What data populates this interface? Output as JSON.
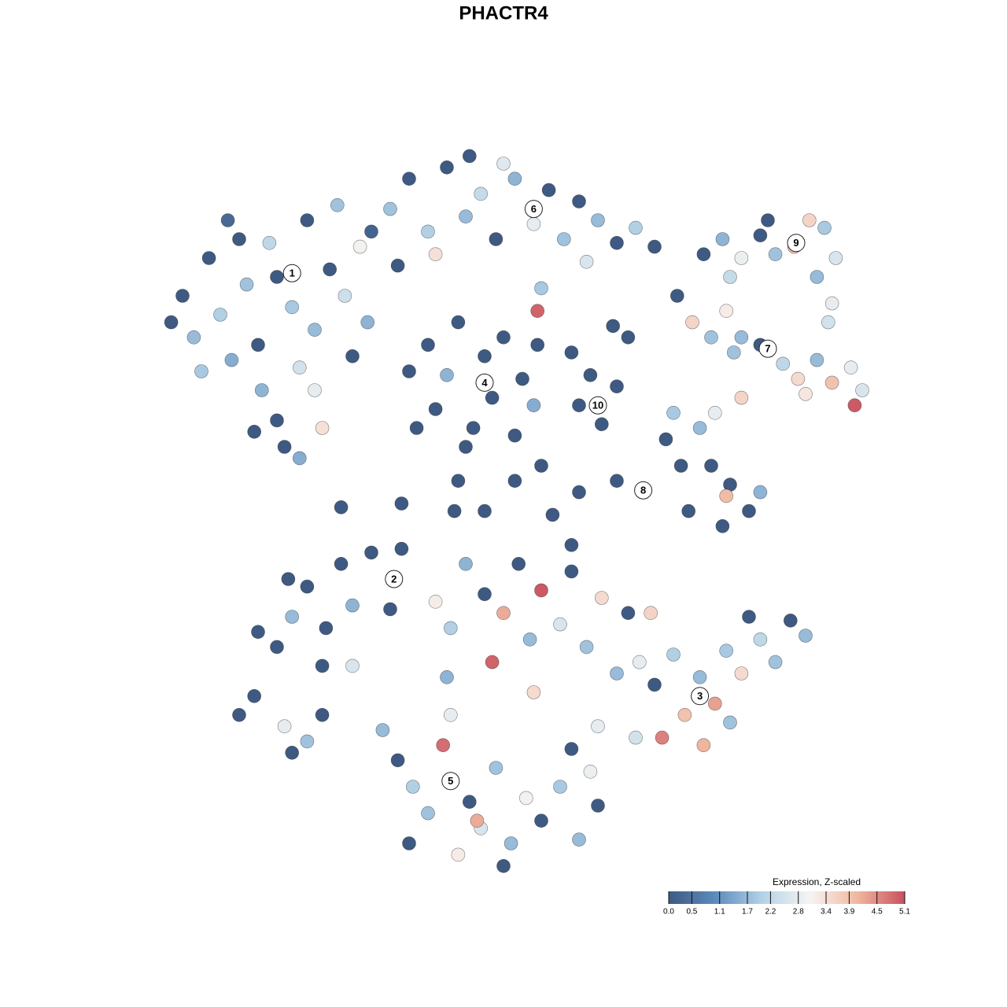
{
  "chart_data": {
    "type": "scatter",
    "title": "PHACTR4",
    "xlim": [
      -10,
      10
    ],
    "ylim": [
      -10,
      10
    ],
    "x": [
      -8.8,
      -8.5,
      -8.2,
      -7.8,
      -7.5,
      -7.2,
      -7.0,
      -6.8,
      -6.5,
      -6.4,
      -6.2,
      -6.0,
      -5.8,
      -5.6,
      -5.4,
      -5.2,
      -5.0,
      -4.8,
      -4.6,
      -4.4,
      -4.2,
      -4.0,
      -3.8,
      -3.6,
      -6.6,
      -5.4,
      -7.3,
      -8.0,
      -6.0,
      -5.0,
      -3.0,
      -2.5,
      -2.0,
      -1.5,
      -1.0,
      -0.6,
      -0.2,
      0.3,
      0.8,
      1.2,
      1.6,
      2.0,
      2.5,
      3.0,
      3.5,
      4.0,
      -1.8,
      1.0,
      0.9,
      -2.8,
      -3.5,
      2.2,
      -0.9,
      0.0,
      5.3,
      5.8,
      6.3,
      6.8,
      7.2,
      7.7,
      8.1,
      8.5,
      8.8,
      8.3,
      7.0,
      6.0,
      8.7,
      8.6,
      4.6,
      5.0,
      5.5,
      5.9,
      6.3,
      6.8,
      7.4,
      7.8,
      8.3,
      8.7,
      9.2,
      9.5,
      9.3,
      8.0,
      6.3,
      5.6,
      4.5,
      6.1,
      -2.5,
      -2.0,
      -1.8,
      -1.5,
      -1.2,
      -0.8,
      -0.5,
      -0.3,
      0.0,
      0.3,
      0.5,
      0.8,
      -1.0,
      -2.3,
      0.9,
      1.8,
      2.3,
      2.6,
      3.0,
      3.3,
      2.0,
      2.9,
      4.3,
      4.7,
      5.2,
      5.5,
      6.0,
      6.5,
      6.8,
      5.8,
      4.9,
      5.9,
      3.0,
      2.0,
      1.3,
      1.8,
      0.3,
      -0.5,
      -1.3,
      -4.3,
      -2.7,
      1.0,
      -1.2,
      -6.5,
      -6.0,
      -5.6,
      -5.2,
      -4.7,
      -4.3,
      -4.0,
      -3.5,
      -3.0,
      -2.7,
      -4.8,
      -4.0,
      -5.7,
      -7.0,
      -6.6,
      -5.8,
      -5.2,
      -5.6,
      -4.8,
      -1.0,
      -0.5,
      0.0,
      0.4,
      0.7,
      1.0,
      1.5,
      1.8,
      2.2,
      2.6,
      3.0,
      3.3,
      3.6,
      -1.4,
      -1.8,
      -0.3,
      0.8,
      -1.5,
      4.0,
      4.5,
      4.8,
      5.2,
      5.6,
      5.9,
      6.3,
      6.8,
      7.2,
      7.6,
      8.0,
      3.5,
      4.2,
      5.3,
      6.0,
      3.9,
      2.5,
      6.5,
      -3.2,
      -2.8,
      -2.4,
      -2.0,
      -1.6,
      -1.2,
      -0.9,
      -0.6,
      -0.2,
      0.2,
      0.6,
      1.0,
      1.5,
      2.0,
      2.5,
      -1.4,
      0.0,
      -2.5,
      2.3,
      -0.7,
      1.8
    ],
    "y": [
      4.8,
      5.5,
      4.4,
      6.5,
      5.0,
      3.8,
      7.0,
      5.8,
      4.2,
      3.0,
      6.9,
      2.2,
      1.5,
      5.2,
      3.6,
      7.5,
      4.6,
      2.0,
      6.2,
      7.9,
      5.5,
      3.9,
      6.8,
      4.8,
      1.9,
      1.2,
      7.5,
      3.5,
      6.0,
      3.0,
      7.8,
      8.6,
      7.2,
      8.9,
      7.6,
      8.2,
      7.0,
      8.6,
      7.4,
      8.3,
      7.0,
      8.0,
      7.5,
      6.9,
      7.3,
      6.8,
      6.6,
      5.7,
      5.1,
      6.3,
      7.2,
      6.4,
      9.2,
      9.0,
      6.6,
      7.0,
      6.5,
      7.1,
      6.6,
      6.8,
      7.5,
      7.3,
      6.5,
      6.0,
      7.5,
      6.0,
      5.3,
      4.8,
      5.5,
      4.8,
      4.4,
      5.1,
      4.4,
      4.2,
      3.7,
      3.3,
      3.8,
      3.2,
      3.6,
      3.0,
      2.6,
      2.9,
      2.8,
      2.4,
      2.4,
      4.0,
      3.5,
      4.2,
      2.5,
      3.4,
      4.8,
      2.0,
      3.9,
      2.8,
      4.4,
      1.8,
      3.3,
      2.6,
      1.5,
      2.0,
      4.2,
      4.0,
      3.4,
      2.1,
      3.1,
      4.4,
      2.6,
      4.7,
      1.7,
      1.0,
      2.0,
      1.0,
      0.5,
      -0.2,
      0.3,
      -0.6,
      -0.2,
      0.2,
      0.6,
      0.3,
      -0.3,
      -1.1,
      0.6,
      -0.2,
      -0.2,
      -0.1,
      0.0,
      1.0,
      0.6,
      -3.4,
      -3.8,
      -3.0,
      -2.2,
      -3.3,
      -1.6,
      -2.7,
      -1.3,
      -2.8,
      -1.2,
      -4.3,
      -4.3,
      -2.0,
      -5.6,
      -5.1,
      -5.9,
      -6.3,
      -6.6,
      -5.6,
      -1.6,
      -2.4,
      -2.9,
      -1.6,
      -3.6,
      -2.3,
      -3.2,
      -1.8,
      -3.8,
      -2.5,
      -4.5,
      -2.9,
      -4.2,
      -3.3,
      -2.6,
      -4.2,
      -5.0,
      -4.6,
      -4.8,
      -4.0,
      -5.6,
      -4.6,
      -5.3,
      -3.9,
      -4.5,
      -3.6,
      -4.2,
      -3.1,
      -3.5,
      -6.2,
      -6.2,
      -6.4,
      -5.8,
      -2.9,
      -5.9,
      -3.0,
      -6.0,
      -6.8,
      -7.5,
      -8.2,
      -6.4,
      -9.3,
      -7.9,
      -8.6,
      -7.0,
      -9.0,
      -7.8,
      -8.4,
      -7.5,
      -8.9,
      -8.0,
      -5.6,
      -9.6,
      -9.0,
      -7.1,
      -8.4,
      -6.5
    ],
    "values": [
      0,
      0,
      1.7,
      0,
      2.0,
      1.5,
      0,
      1.8,
      0,
      1.6,
      2.2,
      0,
      0,
      1.9,
      2.5,
      0,
      1.7,
      3.4,
      0,
      1.8,
      2.4,
      0,
      3.0,
      1.6,
      0,
      1.5,
      0.3,
      1.9,
      0,
      2.8,
      1.8,
      0,
      2.0,
      0,
      1.7,
      2.3,
      0,
      1.6,
      2.8,
      0,
      1.8,
      0,
      1.7,
      0,
      2.0,
      0,
      3.4,
      1.9,
      4.9,
      0,
      0.2,
      2.6,
      0,
      2.7,
      0,
      1.6,
      2.9,
      0,
      1.8,
      4.0,
      3.6,
      1.9,
      2.6,
      1.7,
      0,
      2.3,
      2.8,
      2.5,
      0,
      3.6,
      1.8,
      3.2,
      1.7,
      0,
      2.2,
      3.5,
      1.7,
      3.9,
      2.8,
      2.6,
      5.0,
      3.3,
      3.6,
      2.8,
      1.9,
      1.8,
      0,
      0,
      0,
      1.6,
      0,
      0,
      0,
      0,
      0,
      0,
      0,
      1.5,
      0,
      0,
      0,
      0,
      0,
      0,
      0,
      0,
      0,
      0,
      0,
      0,
      1.7,
      0,
      0,
      0,
      1.6,
      0,
      0,
      4.0,
      0,
      0,
      0,
      0,
      0,
      0,
      0,
      0,
      0,
      0,
      0,
      0,
      0,
      1.7,
      0,
      0,
      0,
      1.6,
      0,
      0,
      0,
      0,
      2.6,
      0,
      0,
      0,
      2.8,
      1.8,
      0,
      0,
      1.6,
      0,
      4.2,
      0,
      1.7,
      5.0,
      2.6,
      0,
      1.8,
      3.5,
      1.7,
      0,
      2.8,
      2.0,
      3.2,
      4.9,
      3.5,
      1.6,
      0,
      2.0,
      3.9,
      1.7,
      4.3,
      1.9,
      3.5,
      2.2,
      1.8,
      0,
      1.7,
      2.5,
      4.6,
      4.1,
      1.8,
      3.6,
      2.8,
      0,
      1.7,
      0,
      2.0,
      1.8,
      4.8,
      3.2,
      0,
      2.6,
      1.8,
      1.7,
      3.0,
      0,
      1.9,
      1.7,
      0,
      2.8,
      0,
      0,
      2.9,
      4.2,
      0
    ],
    "clusters": [
      {
        "label": "1",
        "x": -5.6,
        "y": 6.1
      },
      {
        "label": "2",
        "x": -2.9,
        "y": -2.0
      },
      {
        "label": "3",
        "x": 5.2,
        "y": -5.1
      },
      {
        "label": "4",
        "x": -0.5,
        "y": 3.2
      },
      {
        "label": "5",
        "x": -1.4,
        "y": -7.35
      },
      {
        "label": "6",
        "x": 0.8,
        "y": 7.8
      },
      {
        "label": "7",
        "x": 7.0,
        "y": 4.1
      },
      {
        "label": "8",
        "x": 3.7,
        "y": 0.35
      },
      {
        "label": "9",
        "x": 7.75,
        "y": 6.9
      },
      {
        "label": "10",
        "x": 2.5,
        "y": 2.6
      }
    ],
    "colorbar_title": "Expression, Z-scaled",
    "clim": [
      0,
      5.1
    ],
    "colormap": [
      "#3e5a82",
      "#5d8cbf",
      "#b4d3e6",
      "#f7f4f2",
      "#f0b7a0",
      "#c8505d"
    ],
    "cticks": [
      {
        "value": 0,
        "label": "0.0"
      },
      0.5,
      1.1,
      1.7,
      2.2,
      2.8,
      3.4,
      3.9,
      4.5,
      5.1
    ]
  }
}
